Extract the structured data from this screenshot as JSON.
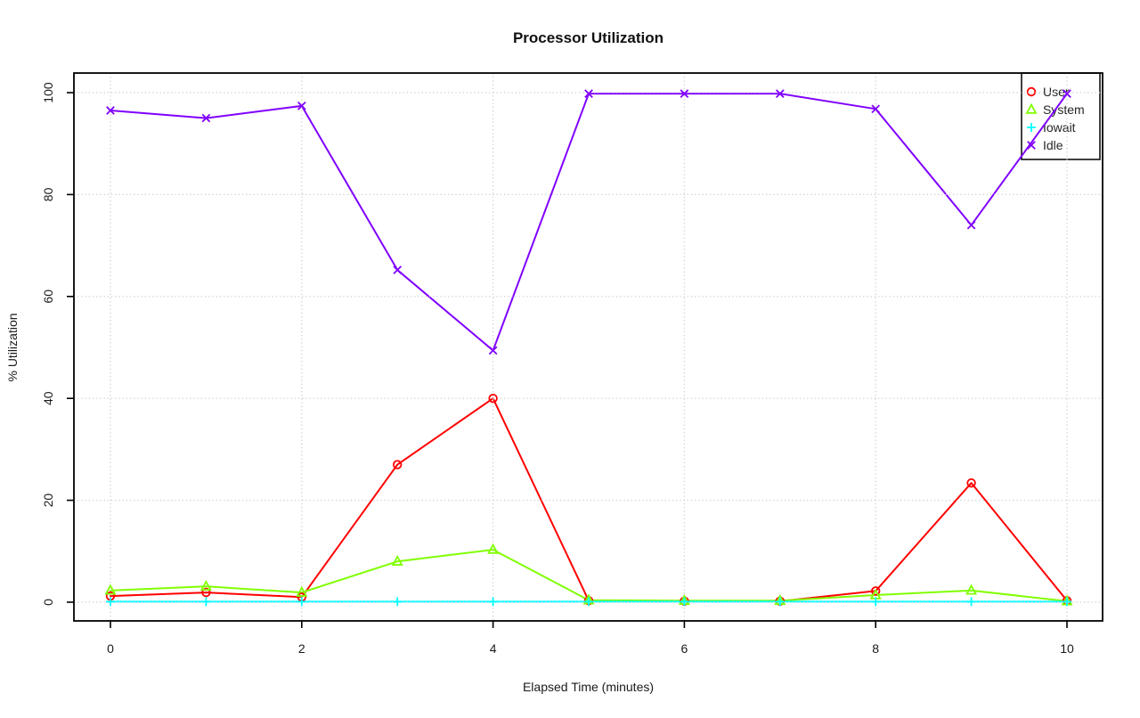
{
  "chart_data": {
    "type": "line",
    "title": "Processor Utilization",
    "xlabel": "Elapsed Time (minutes)",
    "ylabel": "% Utilization",
    "x": [
      0,
      1,
      2,
      3,
      4,
      5,
      6,
      7,
      8,
      9,
      10
    ],
    "xticks": [
      0,
      2,
      4,
      6,
      8,
      10
    ],
    "yticks": [
      0,
      20,
      40,
      60,
      80,
      100
    ],
    "xlim": [
      0,
      10
    ],
    "ylim": [
      0,
      100
    ],
    "grid": {
      "show": true,
      "style": "dotted",
      "color": "#D3D3D3"
    },
    "axis_color": "#000000",
    "text_color": "#1a1a1a",
    "legend": {
      "position": "top-right",
      "border": true,
      "entries": [
        "User",
        "System",
        "Iowait",
        "Idle"
      ]
    },
    "series": [
      {
        "name": "User",
        "color": "#FF0000",
        "marker": "circle",
        "values": [
          1.2,
          1.9,
          1.0,
          27.0,
          40.0,
          0.3,
          0.2,
          0.2,
          2.2,
          23.4,
          0.3
        ]
      },
      {
        "name": "System",
        "color": "#80FF00",
        "marker": "triangle",
        "values": [
          2.3,
          3.1,
          1.9,
          8.0,
          10.3,
          0.4,
          0.3,
          0.3,
          1.4,
          2.3,
          0.2
        ]
      },
      {
        "name": "Iowait",
        "color": "#00FFFF",
        "marker": "plus",
        "values": [
          0.1,
          0.1,
          0.1,
          0.1,
          0.1,
          0.1,
          0.1,
          0.1,
          0.1,
          0.1,
          0.1
        ]
      },
      {
        "name": "Idle",
        "color": "#8000FF",
        "marker": "x",
        "values": [
          96.5,
          95.0,
          97.4,
          65.2,
          49.4,
          99.8,
          99.8,
          99.8,
          96.8,
          74.0,
          99.8
        ]
      }
    ]
  }
}
